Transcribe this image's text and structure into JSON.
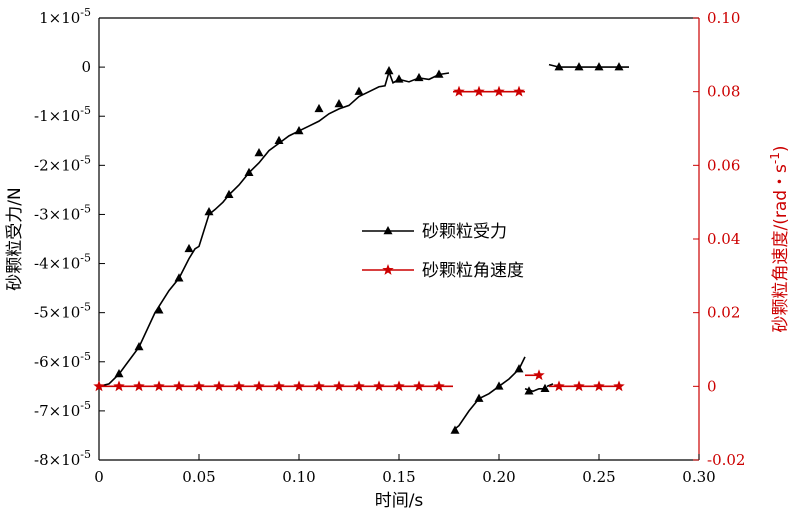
{
  "chart_data": {
    "type": "line",
    "xlabel": "时间/s",
    "ylabel_left": "砂颗粒受力/N",
    "ylabel_right_main": "砂颗粒角速度/(rad・s",
    "ylabel_right_sup": "-1",
    "ylabel_right_close": ")",
    "xlim": [
      0,
      0.3
    ],
    "ylim_left": [
      -8e-05,
      1e-05
    ],
    "ylim_right": [
      -0.02,
      0.1
    ],
    "x_ticks": [
      {
        "v": 0,
        "label": "0"
      },
      {
        "v": 0.05,
        "label": "0.05"
      },
      {
        "v": 0.1,
        "label": "0.10"
      },
      {
        "v": 0.15,
        "label": "0.15"
      },
      {
        "v": 0.2,
        "label": "0.20"
      },
      {
        "v": 0.25,
        "label": "0.25"
      },
      {
        "v": 0.3,
        "label": "0.30"
      }
    ],
    "y_left_ticks": [
      {
        "v": 1e-05,
        "mant": "1",
        "exp": "-5"
      },
      {
        "v": 0,
        "mant": "0",
        "exp": ""
      },
      {
        "v": -1e-05,
        "mant": "-1",
        "exp": "-5"
      },
      {
        "v": -2e-05,
        "mant": "-2",
        "exp": "-5"
      },
      {
        "v": -3e-05,
        "mant": "-3",
        "exp": "-5"
      },
      {
        "v": -4e-05,
        "mant": "-4",
        "exp": "-5"
      },
      {
        "v": -5e-05,
        "mant": "-5",
        "exp": "-5"
      },
      {
        "v": -6e-05,
        "mant": "-6",
        "exp": "-5"
      },
      {
        "v": -7e-05,
        "mant": "-7",
        "exp": "-5"
      },
      {
        "v": -8e-05,
        "mant": "-8",
        "exp": "-5"
      }
    ],
    "y_right_ticks": [
      {
        "v": 0.1,
        "label": "0.10"
      },
      {
        "v": 0.08,
        "label": "0.08"
      },
      {
        "v": 0.06,
        "label": "0.06"
      },
      {
        "v": 0.04,
        "label": "0.04"
      },
      {
        "v": 0.02,
        "label": "0.02"
      },
      {
        "v": 0,
        "label": "0"
      },
      {
        "v": -0.02,
        "label": "-0.02"
      }
    ],
    "left_tick_mult": "×10",
    "series": [
      {
        "name": "砂颗粒受力",
        "axis": "left",
        "color": "#000000",
        "marker": "triangle",
        "segments": [
          [
            [
              0,
              -6.5e-05
            ],
            [
              0.005,
              -6.45e-05
            ],
            [
              0.01,
              -6.25e-05
            ],
            [
              0.02,
              -5.7e-05
            ],
            [
              0.028,
              -5e-05
            ],
            [
              0.035,
              -4.55e-05
            ],
            [
              0.04,
              -4.3e-05
            ],
            [
              0.045,
              -3.9e-05
            ],
            [
              0.048,
              -3.7e-05
            ],
            [
              0.05,
              -3.65e-05
            ],
            [
              0.055,
              -3e-05
            ],
            [
              0.058,
              -2.9e-05
            ],
            [
              0.062,
              -2.75e-05
            ],
            [
              0.065,
              -2.6e-05
            ],
            [
              0.07,
              -2.4e-05
            ],
            [
              0.075,
              -2.15e-05
            ],
            [
              0.08,
              -1.95e-05
            ],
            [
              0.085,
              -1.7e-05
            ],
            [
              0.09,
              -1.55e-05
            ],
            [
              0.095,
              -1.4e-05
            ],
            [
              0.1,
              -1.3e-05
            ],
            [
              0.105,
              -1.2e-05
            ],
            [
              0.11,
              -1.1e-05
            ],
            [
              0.115,
              -9.5e-06
            ],
            [
              0.12,
              -8.5e-06
            ],
            [
              0.125,
              -7.8e-06
            ],
            [
              0.13,
              -6e-06
            ],
            [
              0.135,
              -5e-06
            ],
            [
              0.14,
              -4e-06
            ],
            [
              0.143,
              -3.8e-06
            ],
            [
              0.145,
              -1e-06
            ],
            [
              0.147,
              -3.2e-06
            ],
            [
              0.15,
              -2.5e-06
            ],
            [
              0.155,
              -3e-06
            ],
            [
              0.16,
              -2.2e-06
            ],
            [
              0.165,
              -2.5e-06
            ],
            [
              0.17,
              -1.5e-06
            ],
            [
              0.175,
              -1.2e-06
            ]
          ],
          [
            [
              0.177,
              -7.4e-05
            ],
            [
              0.18,
              -7.3e-05
            ],
            [
              0.185,
              -7e-05
            ],
            [
              0.19,
              -6.75e-05
            ],
            [
              0.195,
              -6.65e-05
            ],
            [
              0.2,
              -6.5e-05
            ],
            [
              0.205,
              -6.35e-05
            ],
            [
              0.21,
              -6.15e-05
            ],
            [
              0.213,
              -5.9e-05
            ]
          ],
          [
            [
              0.213,
              -6.55e-05
            ],
            [
              0.217,
              -6.6e-05
            ],
            [
              0.22,
              -6.55e-05
            ],
            [
              0.224,
              -6.55e-05
            ]
          ],
          [
            [
              0.224,
              -6.5e-05
            ],
            [
              0.227,
              -6.45e-05
            ]
          ],
          [
            [
              0.225,
              5e-07
            ],
            [
              0.23,
              0
            ],
            [
              0.24,
              0
            ],
            [
              0.25,
              0
            ],
            [
              0.26,
              0
            ],
            [
              0.265,
              0
            ]
          ]
        ],
        "markers": [
          [
            0.01,
            -6.25e-05
          ],
          [
            0.02,
            -5.7e-05
          ],
          [
            0.03,
            -4.95e-05
          ],
          [
            0.04,
            -4.3e-05
          ],
          [
            0.045,
            -3.7e-05
          ],
          [
            0.055,
            -2.95e-05
          ],
          [
            0.065,
            -2.6e-05
          ],
          [
            0.075,
            -2.15e-05
          ],
          [
            0.08,
            -1.75e-05
          ],
          [
            0.09,
            -1.5e-05
          ],
          [
            0.1,
            -1.3e-05
          ],
          [
            0.11,
            -8.5e-06
          ],
          [
            0.12,
            -7.5e-06
          ],
          [
            0.13,
            -5e-06
          ],
          [
            0.145,
            -8e-07
          ],
          [
            0.15,
            -2.5e-06
          ],
          [
            0.16,
            -2.2e-06
          ],
          [
            0.17,
            -1.5e-06
          ],
          [
            0.178,
            -7.4e-05
          ],
          [
            0.19,
            -6.75e-05
          ],
          [
            0.2,
            -6.5e-05
          ],
          [
            0.21,
            -6.15e-05
          ],
          [
            0.215,
            -6.6e-05
          ],
          [
            0.223,
            -6.55e-05
          ],
          [
            0.23,
            0
          ],
          [
            0.24,
            0
          ],
          [
            0.25,
            0
          ],
          [
            0.26,
            0
          ]
        ]
      },
      {
        "name": "砂颗粒角速度",
        "axis": "right",
        "color": "#cc0000",
        "marker": "star",
        "segments": [
          [
            [
              0,
              0
            ],
            [
              0.177,
              0
            ]
          ],
          [
            [
              0.177,
              0.08
            ],
            [
              0.213,
              0.08
            ]
          ],
          [
            [
              0.213,
              0.003
            ],
            [
              0.22,
              0.003
            ]
          ],
          [
            [
              0.225,
              0
            ],
            [
              0.26,
              0
            ]
          ]
        ],
        "markers": [
          [
            0,
            0
          ],
          [
            0.01,
            0
          ],
          [
            0.02,
            0
          ],
          [
            0.03,
            0
          ],
          [
            0.04,
            0
          ],
          [
            0.05,
            0
          ],
          [
            0.06,
            0
          ],
          [
            0.07,
            0
          ],
          [
            0.08,
            0
          ],
          [
            0.09,
            0
          ],
          [
            0.1,
            0
          ],
          [
            0.11,
            0
          ],
          [
            0.12,
            0
          ],
          [
            0.13,
            0
          ],
          [
            0.14,
            0
          ],
          [
            0.15,
            0
          ],
          [
            0.16,
            0
          ],
          [
            0.17,
            0
          ],
          [
            0.18,
            0.08
          ],
          [
            0.19,
            0.08
          ],
          [
            0.2,
            0.08
          ],
          [
            0.21,
            0.08
          ],
          [
            0.22,
            0.003
          ],
          [
            0.23,
            0
          ],
          [
            0.24,
            0
          ],
          [
            0.25,
            0
          ],
          [
            0.26,
            0
          ]
        ]
      }
    ],
    "legend": {
      "placement": "center",
      "items": [
        "砂颗粒受力",
        "砂颗粒角速度"
      ]
    },
    "grid": false
  }
}
